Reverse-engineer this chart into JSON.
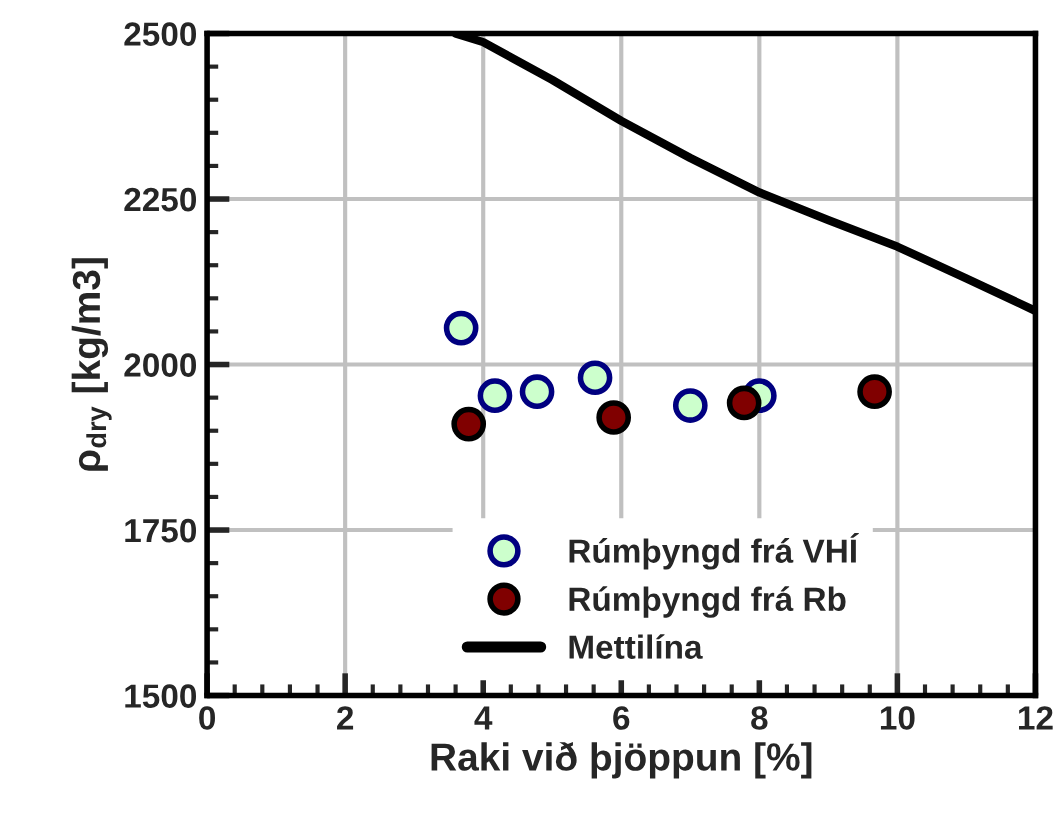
{
  "chart_data": {
    "type": "scatter",
    "xlabel": "Raki við þjöppun [%]",
    "ylabel": "ρ$_{dry}$ [kg/m3]",
    "xlim": [
      0,
      12
    ],
    "xticks": [
      0,
      2,
      4,
      6,
      8,
      10,
      12
    ],
    "ylim": [
      1500,
      2500
    ],
    "yticks": [
      1500,
      1750,
      2000,
      2250,
      2500
    ],
    "grid": true,
    "legend": "bottom",
    "series": [
      {
        "name": "Rúmþyngd frá VHÍ",
        "color": "#ccffcc",
        "marker": "circle",
        "x": [
          3.68,
          4.17,
          4.78,
          5.62,
          7.0,
          8.0
        ],
        "values": [
          2055,
          1953,
          1959,
          1980,
          1938,
          1953
        ]
      },
      {
        "name": "Rúmþyngd frá Rb",
        "color": "#800000",
        "marker": "circle",
        "x": [
          3.79,
          5.89,
          7.78,
          9.67
        ],
        "values": [
          1910,
          1920,
          1942,
          1959
        ]
      },
      {
        "name": "Mettilína",
        "type": "line",
        "color": "#000000",
        "line_style": "solid",
        "marker": "none",
        "x": [
          3.6,
          4,
          5,
          6,
          7,
          8,
          9,
          10,
          11,
          12
        ],
        "values": [
          2500,
          2487,
          2430,
          2368,
          2312,
          2260,
          2218,
          2178,
          2130,
          2081
        ]
      }
    ]
  }
}
